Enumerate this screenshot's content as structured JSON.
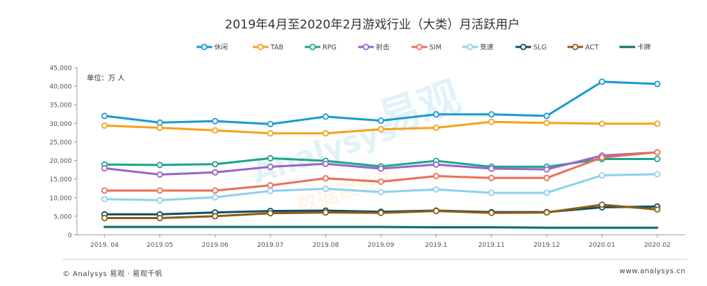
{
  "chart_data": {
    "type": "line",
    "title": "2019年4月至2020年2月游戏行业（大类）月活跃用户",
    "unit_label": "单位：万 人",
    "categories": [
      "2019. 04",
      "2019.05",
      "2019.06",
      "2019.07",
      "2019.08",
      "2019.09",
      "2019.1",
      "2019.11",
      "2019.12",
      "2020.01",
      "2020.02"
    ],
    "y_ticks": [
      "0",
      "5,000",
      "10,000",
      "15,000",
      "20,000",
      "25,000",
      "30,000",
      "35,000",
      "40,000",
      "45,000"
    ],
    "ylim": [
      0,
      45000
    ],
    "grid": false,
    "legend_position": "top-center",
    "series": [
      {
        "name": "休闲",
        "color": "#1a9ad6",
        "marker": true,
        "values": [
          32000,
          30200,
          30600,
          29800,
          31800,
          30700,
          32400,
          32400,
          32000,
          41200,
          40600
        ]
      },
      {
        "name": "TAB",
        "color": "#f5a21b",
        "marker": true,
        "values": [
          29400,
          28800,
          28100,
          27300,
          27300,
          28400,
          28800,
          30400,
          30100,
          29900,
          29900
        ]
      },
      {
        "name": "RPG",
        "color": "#1aa88a",
        "marker": true,
        "values": [
          18900,
          18800,
          19000,
          20600,
          19900,
          18400,
          19900,
          18300,
          18300,
          20400,
          20400
        ]
      },
      {
        "name": "射击",
        "color": "#9b64c8",
        "marker": true,
        "values": [
          17900,
          16200,
          16800,
          18300,
          19100,
          17800,
          18900,
          17800,
          17600,
          21300,
          22200
        ]
      },
      {
        "name": "SIM",
        "color": "#ec6f57",
        "marker": true,
        "values": [
          11900,
          11900,
          11900,
          13300,
          15200,
          14300,
          15800,
          15300,
          15300,
          20800,
          22200
        ]
      },
      {
        "name": "竞速",
        "color": "#8fd0ee",
        "marker": true,
        "values": [
          9600,
          9300,
          10100,
          11800,
          12400,
          11500,
          12200,
          11300,
          11300,
          16000,
          16300
        ]
      },
      {
        "name": "SLG",
        "color": "#114e66",
        "marker": true,
        "values": [
          5500,
          5500,
          6000,
          6400,
          6500,
          6200,
          6500,
          6100,
          6100,
          7400,
          7600
        ]
      },
      {
        "name": "ACT",
        "color": "#8c5d12",
        "marker": true,
        "values": [
          4500,
          4500,
          5000,
          5800,
          6000,
          5900,
          6400,
          5900,
          6000,
          8100,
          6800
        ]
      },
      {
        "name": "卡牌",
        "color": "#0b6e63",
        "marker": false,
        "values": [
          2100,
          2100,
          2100,
          2100,
          2100,
          2100,
          2000,
          2000,
          1900,
          1900,
          1900
        ]
      }
    ]
  },
  "watermark": {
    "text1": "易观",
    "text2": "Analysys",
    "text3": "数据赋能力"
  },
  "footer": {
    "left": "© Analysys 易观 · 易观千帆",
    "right": "www.analysys.cn"
  }
}
